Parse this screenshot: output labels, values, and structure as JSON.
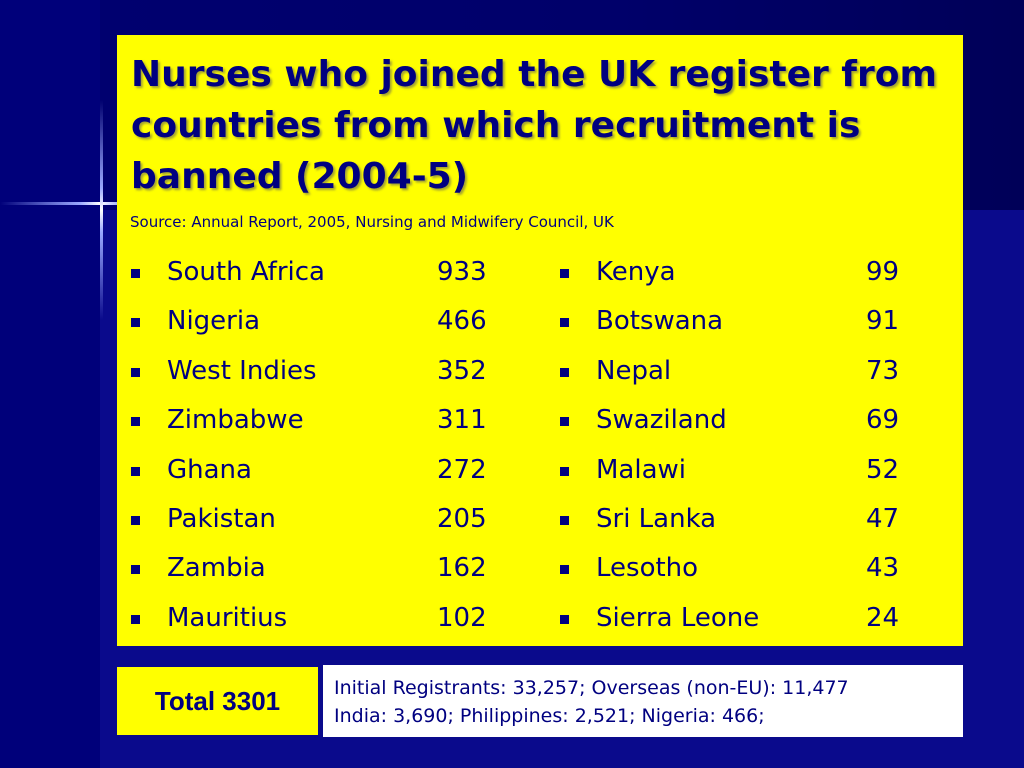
{
  "slide": {
    "title": "Nurses who joined the UK register from countries from which recruitment is banned (2004-5)",
    "source": "Source: Annual Report, 2005, Nursing and Midwifery Council, UK",
    "left_list": [
      {
        "country": "South Africa",
        "value": "933"
      },
      {
        "country": "Nigeria",
        "value": "466"
      },
      {
        "country": "West Indies",
        "value": "352"
      },
      {
        "country": "Zimbabwe",
        "value": "311"
      },
      {
        "country": "Ghana",
        "value": "272"
      },
      {
        "country": "Pakistan",
        "value": "205"
      },
      {
        "country": "Zambia",
        "value": "162"
      },
      {
        "country": "Mauritius",
        "value": "102"
      }
    ],
    "right_list": [
      {
        "country": "Kenya",
        "value": "99"
      },
      {
        "country": "Botswana",
        "value": "91"
      },
      {
        "country": "Nepal",
        "value": "73"
      },
      {
        "country": "Swaziland",
        "value": "69"
      },
      {
        "country": "Malawi",
        "value": "52"
      },
      {
        "country": "Sri Lanka",
        "value": "47"
      },
      {
        "country": "Lesotho",
        "value": "43"
      },
      {
        "country": "Sierra Leone",
        "value": "24"
      }
    ],
    "total": "Total 3301",
    "note_line1": "Initial Registrants: 33,257; Overseas (non-EU): 11,477",
    "note_line2": "India: 3,690; Philippines: 2,521; Nigeria: 466;"
  },
  "colors": {
    "background": "#0a0a8c",
    "panel": "#ffff00",
    "text": "#000080",
    "note_box": "#ffffff"
  }
}
